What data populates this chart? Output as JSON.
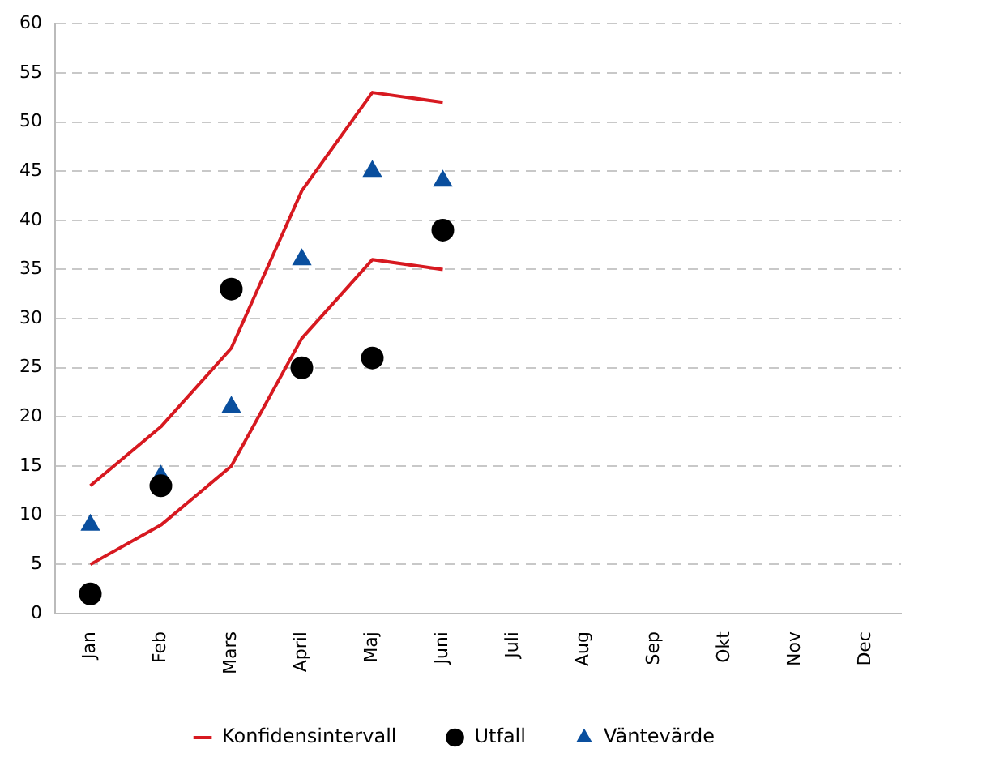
{
  "chart_data": {
    "type": "line",
    "categories": [
      "Jan",
      "Feb",
      "Mars",
      "April",
      "Maj",
      "Juni",
      "Juli",
      "Aug",
      "Sep",
      "Okt",
      "Nov",
      "Dec"
    ],
    "series": [
      {
        "name": "Konfidensintervall",
        "color": "#d71920",
        "marker": "none",
        "values": [
          13,
          19,
          27,
          43,
          53,
          52,
          null,
          null,
          null,
          null,
          null,
          null
        ]
      },
      {
        "color": "#d71920",
        "marker": "none",
        "values": [
          5,
          9,
          15,
          28,
          36,
          35,
          null,
          null,
          null,
          null,
          null,
          null
        ]
      },
      {
        "name": "Utfall",
        "type": "scatter",
        "color": "#000000",
        "marker": "circle",
        "values": [
          2,
          13,
          33,
          25,
          26,
          39,
          null,
          null,
          null,
          null,
          null,
          null
        ]
      },
      {
        "name": "Väntevärde",
        "type": "scatter",
        "color": "#0a4f9e",
        "marker": "triangle",
        "values": [
          9,
          14,
          21,
          36,
          45,
          44,
          null,
          null,
          null,
          null,
          null,
          null
        ]
      }
    ],
    "ylim": [
      0,
      60
    ],
    "yticks": [
      0,
      5,
      10,
      15,
      20,
      25,
      30,
      35,
      40,
      45,
      50,
      55,
      60
    ],
    "grid": "y",
    "legend": "bottom",
    "line_style": "solid"
  }
}
